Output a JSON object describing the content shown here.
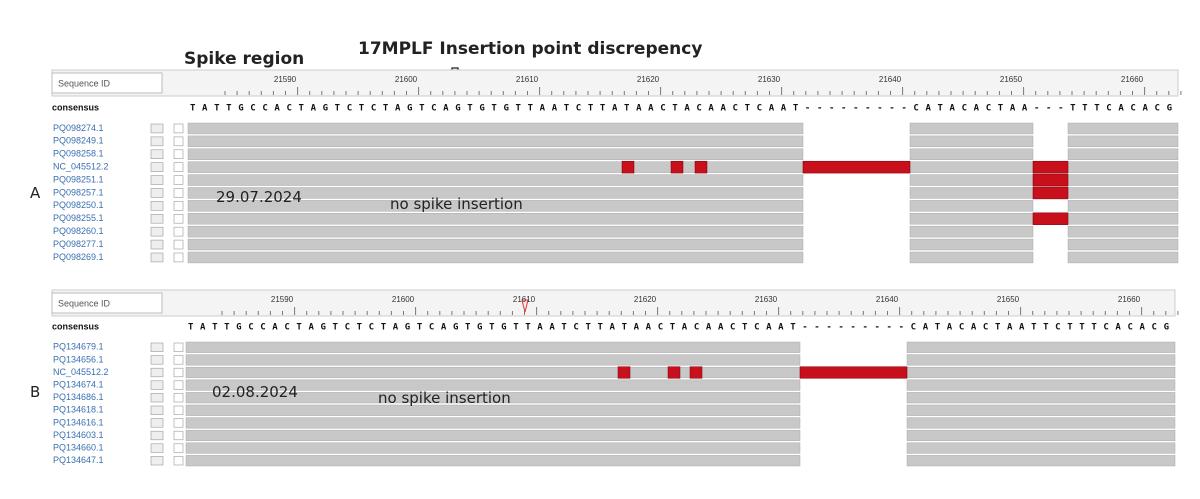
{
  "header": {
    "spike_label": "Spike region",
    "insertion_label": "17MPLF Insertion point discrepency"
  },
  "panels": [
    {
      "label": "A",
      "date": "29.07.2024",
      "note": "no spike insertion",
      "id_header": "Sequence ID",
      "ruler": [
        "21590",
        "21600",
        "21610",
        "21620",
        "21630",
        "21640",
        "21650",
        "21660"
      ],
      "consensus_label": "consensus",
      "consensus": "TATTGCCACTAGTCTCTAGTCAGTGTGTTAATCTTATAACTACAACTCAAT---------CATACACTAA---TTTCACACG",
      "rows": [
        "PQ098274.1",
        "PQ098249.1",
        "PQ098258.1",
        "NC_045512.2",
        "PQ098251.1",
        "PQ098257.1",
        "PQ098250.1",
        "PQ098255.1",
        "PQ098260.1",
        "PQ098277.1",
        "PQ098269.1"
      ]
    },
    {
      "label": "B",
      "date": "02.08.2024",
      "note": "no spike insertion",
      "id_header": "Sequence ID",
      "ruler": [
        "21590",
        "21600",
        "21610",
        "21620",
        "21630",
        "21640",
        "21650",
        "21660"
      ],
      "consensus_label": "consensus",
      "consensus": "TATTGCCACTAGTCTCTAGTCAGTGTGTTAATCTTATAACTACAACTCAAT---------CATACACTAATTCTTTCACACG",
      "rows": [
        "PQ134679.1",
        "PQ134656.1",
        "NC_045512.2",
        "PQ134674.1",
        "PQ134686.1",
        "PQ134618.1",
        "PQ134616.1",
        "PQ134603.1",
        "PQ134660.1",
        "PQ134647.1"
      ]
    }
  ]
}
